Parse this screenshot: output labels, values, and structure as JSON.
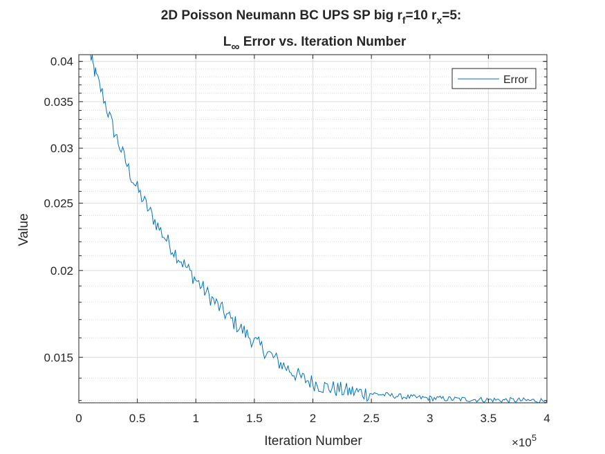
{
  "chart_data": {
    "type": "line",
    "title_line1": {
      "main": "2D Poisson Neumann BC UPS SP big r",
      "sub1": "f",
      "mid": "=10 r",
      "sub2": "x",
      "end": "=5:"
    },
    "title_line2": {
      "main": "L",
      "sub": "∞",
      "end": " Error vs. Iteration Number"
    },
    "xlabel": "Iteration Number",
    "ylabel": "Value",
    "x_multiplier": {
      "base": "×10",
      "exponent": "5"
    },
    "xlim": [
      0,
      400000
    ],
    "ylim": [
      0.0129,
      0.0409
    ],
    "yscale": "log",
    "grid": true,
    "minor_grid": true,
    "legend_position": "top-right",
    "x_ticks": [
      {
        "value": 0,
        "label": "0"
      },
      {
        "value": 50000,
        "label": "0.5"
      },
      {
        "value": 100000,
        "label": "1"
      },
      {
        "value": 150000,
        "label": "1.5"
      },
      {
        "value": 200000,
        "label": "2"
      },
      {
        "value": 250000,
        "label": "2.5"
      },
      {
        "value": 300000,
        "label": "3"
      },
      {
        "value": 350000,
        "label": "3.5"
      },
      {
        "value": 400000,
        "label": "4"
      }
    ],
    "y_ticks": [
      {
        "value": 0.015,
        "label": "0.015"
      },
      {
        "value": 0.02,
        "label": "0.02"
      },
      {
        "value": 0.025,
        "label": "0.025"
      },
      {
        "value": 0.03,
        "label": "0.03"
      },
      {
        "value": 0.035,
        "label": "0.035"
      },
      {
        "value": 0.04,
        "label": "0.04"
      }
    ],
    "y_minor_ticks": [
      0.013,
      0.014,
      0.016,
      0.017,
      0.018,
      0.019,
      0.021,
      0.022,
      0.023,
      0.024,
      0.026,
      0.027,
      0.028,
      0.029,
      0.031,
      0.032,
      0.033,
      0.034,
      0.036,
      0.037,
      0.038,
      0.039,
      0.04
    ],
    "series": [
      {
        "name": "Error",
        "color": "#0072BD",
        "x": [
          10000,
          12000,
          15000,
          20000,
          25000,
          30000,
          35000,
          40000,
          45000,
          50000,
          60000,
          70000,
          80000,
          90000,
          100000,
          110000,
          120000,
          130000,
          140000,
          150000,
          160000,
          170000,
          180000,
          190000,
          200000,
          210000,
          220000,
          230000,
          240000,
          250000,
          260000,
          270000,
          280000,
          290000,
          300000,
          310000,
          320000,
          330000,
          340000,
          350000,
          360000,
          370000,
          380000,
          390000,
          400000
        ],
        "y": [
          0.0409,
          0.0395,
          0.038,
          0.036,
          0.0338,
          0.0318,
          0.0302,
          0.0287,
          0.0273,
          0.0262,
          0.0244,
          0.0228,
          0.0215,
          0.0204,
          0.0194,
          0.0185,
          0.0177,
          0.017,
          0.0164,
          0.0158,
          0.0153,
          0.0148,
          0.0144,
          0.014,
          0.0138,
          0.0136,
          0.0135,
          0.0134,
          0.01335,
          0.0133,
          0.01325,
          0.0132,
          0.01315,
          0.01312,
          0.0131,
          0.01308,
          0.01306,
          0.01305,
          0.01304,
          0.01303,
          0.01302,
          0.01301,
          0.013,
          0.013,
          0.01299
        ]
      }
    ]
  }
}
